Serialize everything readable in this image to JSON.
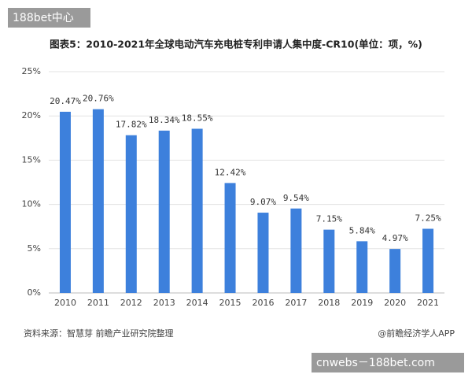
{
  "chart_data": {
    "type": "bar",
    "title": "图表5：2010-2021年全球电动汽车充电桩专利申请人集中度-CR10(单位：项，%)",
    "categories": [
      "2010",
      "2011",
      "2012",
      "2013",
      "2014",
      "2015",
      "2016",
      "2017",
      "2018",
      "2019",
      "2020",
      "2021"
    ],
    "values": [
      20.47,
      20.76,
      17.82,
      18.34,
      18.55,
      12.42,
      9.07,
      9.54,
      7.15,
      5.84,
      4.97,
      7.25
    ],
    "value_labels": [
      "20.47%",
      "20.76%",
      "17.82%",
      "18.34%",
      "18.55%",
      "12.42%",
      "9.07%",
      "9.54%",
      "7.15%",
      "5.84%",
      "4.97%",
      "7.25%"
    ],
    "color": "#3d80dc",
    "ylim": [
      0,
      25
    ],
    "yticks": [
      {
        "value": 0,
        "label": "0%"
      },
      {
        "value": 5,
        "label": "5%"
      },
      {
        "value": 10,
        "label": "10%"
      },
      {
        "value": 15,
        "label": "15%"
      },
      {
        "value": 20,
        "label": "20%"
      },
      {
        "value": 25,
        "label": "25%"
      }
    ],
    "grid": true,
    "source": "资料来源：智慧芽 前瞻产业研究院整理",
    "credit": "@前瞻经济学人APP"
  },
  "overlays": {
    "top_left": "188bet中心",
    "bottom_right": "cnwebs－188bet.com"
  }
}
